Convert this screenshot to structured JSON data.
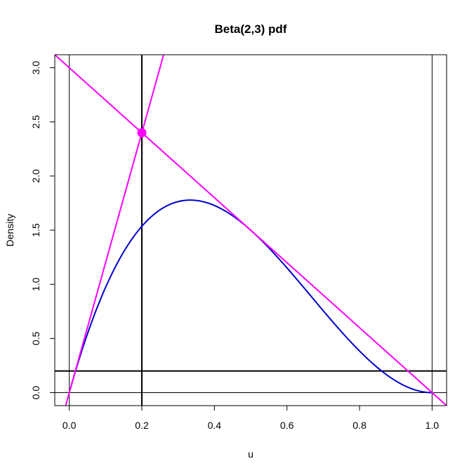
{
  "chart_data": {
    "type": "line",
    "title": "Beta(2,3) pdf",
    "xlabel": "u",
    "ylabel": "Density",
    "xlim": [
      -0.04,
      1.04
    ],
    "ylim": [
      -0.12,
      3.12
    ],
    "x_ticks": [
      "0.0",
      "0.2",
      "0.4",
      "0.6",
      "0.8",
      "1.0"
    ],
    "x_tick_values": [
      0,
      0.2,
      0.4,
      0.6,
      0.8,
      1.0
    ],
    "y_ticks": [
      "0.0",
      "0.5",
      "1.0",
      "1.5",
      "2.0",
      "2.5",
      "3.0"
    ],
    "y_tick_values": [
      0,
      0.5,
      1.0,
      1.5,
      2.0,
      2.5,
      3.0
    ],
    "grid": false,
    "series": [
      {
        "kind": "curve",
        "function": "Beta(2,3) density: 12*u*(1-u)^2",
        "color": "#0000CC",
        "x": [
          0,
          0.05,
          0.1,
          0.15,
          0.2,
          0.25,
          0.3,
          0.333,
          0.35,
          0.4,
          0.45,
          0.5,
          0.55,
          0.6,
          0.65,
          0.7,
          0.75,
          0.8,
          0.85,
          0.9,
          0.95,
          1.0
        ],
        "y": [
          0,
          0.5415,
          0.972,
          1.3005,
          1.536,
          1.6875,
          1.764,
          1.7778,
          1.7745,
          1.728,
          1.6335,
          1.5,
          1.3365,
          1.152,
          0.9555,
          0.756,
          0.5625,
          0.384,
          0.2295,
          0.108,
          0.0285,
          0
        ]
      },
      {
        "kind": "line",
        "description": "line through origin and (0.2, 2.4)",
        "color": "#FF00FF",
        "x": [
          -0.01,
          0.26
        ],
        "y": [
          -0.12,
          3.12
        ]
      },
      {
        "kind": "line",
        "description": "line through (0.2, 2.4) and (1.0, 0)",
        "color": "#FF00FF",
        "x": [
          -0.04,
          1.04
        ],
        "y": [
          3.12,
          -0.12
        ]
      }
    ],
    "points": [
      {
        "x": 0.2,
        "y": 2.4,
        "color": "#FF00FF"
      }
    ],
    "reference_lines": {
      "vertical_thin": [
        0,
        1
      ],
      "vertical_thick": [
        0.2
      ],
      "horizontal_thin": [
        0
      ],
      "horizontal_thick": [
        0.2
      ]
    }
  }
}
